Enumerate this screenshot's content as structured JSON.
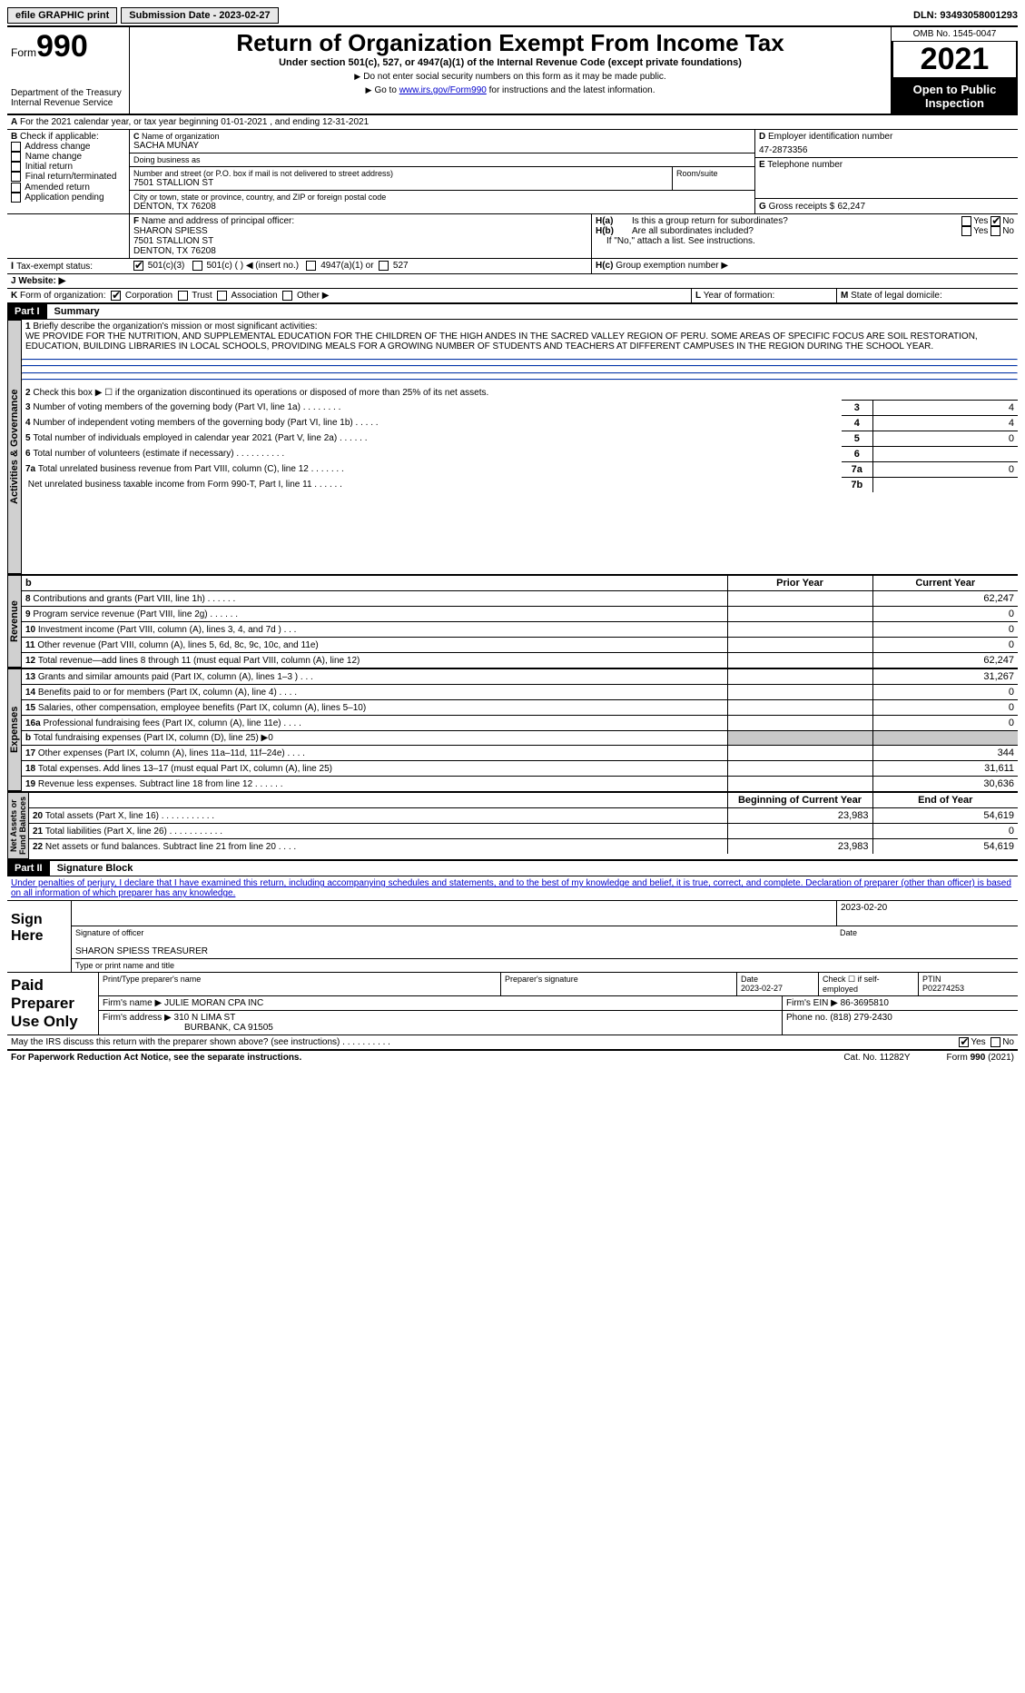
{
  "topbar": {
    "efile": "efile GRAPHIC print",
    "sub_label": "Submission Date - 2023-02-27",
    "dln_label": "DLN: 93493058001293"
  },
  "header": {
    "form_word": "Form",
    "form_num": "990",
    "dept": "Department of the Treasury\nInternal Revenue Service",
    "title": "Return of Organization Exempt From Income Tax",
    "subtitle": "Under section 501(c), 527, or 4947(a)(1) of the Internal Revenue Code (except private foundations)",
    "note1": "Do not enter social security numbers on this form as it may be made public.",
    "note2_pre": "Go to ",
    "note2_link": "www.irs.gov/Form990",
    "note2_post": " for instructions and the latest information.",
    "omb": "OMB No. 1545-0047",
    "year": "2021",
    "open_pub": "Open to Public\nInspection"
  },
  "sectionA": {
    "line": "For the 2021 calendar year, or tax year beginning 01-01-2021    , and ending 12-31-2021"
  },
  "sectionB": {
    "label": "Check if applicable:",
    "opts": [
      "Address change",
      "Name change",
      "Initial return",
      "Final return/terminated",
      "Amended return",
      "Application pending"
    ]
  },
  "sectionC": {
    "name_lbl": "Name of organization",
    "name": "SACHA MUNAY",
    "dba_lbl": "Doing business as",
    "dba": "",
    "street_lbl": "Number and street (or P.O. box if mail is not delivered to street address)",
    "room_lbl": "Room/suite",
    "street": "7501 STALLION ST",
    "city_lbl": "City or town, state or province, country, and ZIP or foreign postal code",
    "city": "DENTON, TX  76208"
  },
  "sectionD": {
    "lbl": "Employer identification number",
    "val": "47-2873356"
  },
  "sectionE": {
    "lbl": "Telephone number",
    "val": ""
  },
  "sectionG": {
    "lbl": "Gross receipts $",
    "val": "62,247"
  },
  "sectionF": {
    "lbl": "Name and address of principal officer:",
    "line1": "SHARON SPIESS",
    "line2": "7501 STALLION ST",
    "line3": "DENTON, TX  76208"
  },
  "sectionH": {
    "ha": "Is this a group return for subordinates?",
    "hb": "Are all subordinates included?",
    "ifno": "If \"No,\" attach a list. See instructions.",
    "hc": "Group exemption number ▶",
    "yes": "Yes",
    "no": "No"
  },
  "taxExempt": {
    "lbl": "Tax-exempt status:",
    "c3": "501(c)(3)",
    "c": "501(c) (  ) ◀ (insert no.)",
    "a1": "4947(a)(1) or",
    "s527": "527"
  },
  "website": {
    "lbl": "Website: ▶",
    "val": ""
  },
  "formOrg": {
    "lbl": "Form of organization:",
    "corp": "Corporation",
    "trust": "Trust",
    "assoc": "Association",
    "other": "Other ▶"
  },
  "yearForm": {
    "lbl": "Year of formation:",
    "val": ""
  },
  "stateDom": {
    "lbl": "State of legal domicile:",
    "val": ""
  },
  "part1": {
    "num": "Part I",
    "title": "Summary",
    "mission_lbl": "Briefly describe the organization's mission or most significant activities:",
    "mission": "WE PROVIDE FOR THE NUTRITION, AND SUPPLEMENTAL EDUCATION FOR THE CHILDREN OF THE HIGH ANDES IN THE SACRED VALLEY REGION OF PERU. SOME AREAS OF SPECIFIC FOCUS ARE SOIL RESTORATION, EDUCATION, BUILDING LIBRARIES IN LOCAL SCHOOLS, PROVIDING MEALS FOR A GROWING NUMBER OF STUDENTS AND TEACHERS AT DIFFERENT CAMPUSES IN THE REGION DURING THE SCHOOL YEAR.",
    "l2": "Check this box ▶ ☐  if the organization discontinued its operations or disposed of more than 25% of its net assets.",
    "lines_gov": [
      {
        "n": "3",
        "t": "Number of voting members of the governing body (Part VI, line 1a)   .   .   .   .   .   .   .   .",
        "b": "3",
        "v": "4"
      },
      {
        "n": "4",
        "t": "Number of independent voting members of the governing body (Part VI, line 1b)   .   .   .   .   .",
        "b": "4",
        "v": "4"
      },
      {
        "n": "5",
        "t": "Total number of individuals employed in calendar year 2021 (Part V, line 2a)   .   .   .   .   .   .",
        "b": "5",
        "v": "0"
      },
      {
        "n": "6",
        "t": "Total number of volunteers (estimate if necessary)   .   .   .   .   .   .   .   .   .   .",
        "b": "6",
        "v": ""
      },
      {
        "n": "7a",
        "t": "Total unrelated business revenue from Part VIII, column (C), line 12   .   .   .   .   .   .   .",
        "b": "7a",
        "v": "0"
      },
      {
        "n": "",
        "t": "Net unrelated business taxable income from Form 990-T, Part I, line 11   .   .   .   .   .   .",
        "b": "7b",
        "v": ""
      }
    ],
    "prior_hdr": "Prior Year",
    "curr_hdr": "Current Year",
    "rev_lines": [
      {
        "n": "8",
        "t": "Contributions and grants (Part VIII, line 1h)   .   .   .   .   .   .",
        "p": "",
        "c": "62,247"
      },
      {
        "n": "9",
        "t": "Program service revenue (Part VIII, line 2g)   .   .   .   .   .   .",
        "p": "",
        "c": "0"
      },
      {
        "n": "10",
        "t": "Investment income (Part VIII, column (A), lines 3, 4, and 7d )   .   .   .",
        "p": "",
        "c": "0"
      },
      {
        "n": "11",
        "t": "Other revenue (Part VIII, column (A), lines 5, 6d, 8c, 9c, 10c, and 11e)",
        "p": "",
        "c": "0"
      },
      {
        "n": "12",
        "t": "Total revenue—add lines 8 through 11 (must equal Part VIII, column (A), line 12)",
        "p": "",
        "c": "62,247"
      }
    ],
    "exp_lines": [
      {
        "n": "13",
        "t": "Grants and similar amounts paid (Part IX, column (A), lines 1–3 )   .   .   .",
        "p": "",
        "c": "31,267"
      },
      {
        "n": "14",
        "t": "Benefits paid to or for members (Part IX, column (A), line 4)   .   .   .   .",
        "p": "",
        "c": "0"
      },
      {
        "n": "15",
        "t": "Salaries, other compensation, employee benefits (Part IX, column (A), lines 5–10)",
        "p": "",
        "c": "0"
      },
      {
        "n": "16a",
        "t": "Professional fundraising fees (Part IX, column (A), line 11e)   .   .   .   .",
        "p": "",
        "c": "0"
      },
      {
        "n": "b",
        "t": "Total fundraising expenses (Part IX, column (D), line 25) ▶0",
        "p": "GREY",
        "c": "GREY"
      },
      {
        "n": "17",
        "t": "Other expenses (Part IX, column (A), lines 11a–11d, 11f–24e)   .   .   .   .",
        "p": "",
        "c": "344"
      },
      {
        "n": "18",
        "t": "Total expenses. Add lines 13–17 (must equal Part IX, column (A), line 25)",
        "p": "",
        "c": "31,611"
      },
      {
        "n": "19",
        "t": "Revenue less expenses. Subtract line 18 from line 12   .   .   .   .   .   .",
        "p": "",
        "c": "30,636"
      }
    ],
    "na_hdr1": "Beginning of Current Year",
    "na_hdr2": "End of Year",
    "na_lines": [
      {
        "n": "20",
        "t": "Total assets (Part X, line 16)   .   .   .   .   .   .   .   .   .   .   .",
        "p": "23,983",
        "c": "54,619"
      },
      {
        "n": "21",
        "t": "Total liabilities (Part X, line 26)   .   .   .   .   .   .   .   .   .   .   .",
        "p": "",
        "c": "0"
      },
      {
        "n": "22",
        "t": "Net assets or fund balances. Subtract line 21 from line 20   .   .   .   .",
        "p": "23,983",
        "c": "54,619"
      }
    ]
  },
  "part2": {
    "num": "Part II",
    "title": "Signature Block",
    "decl": "Under penalties of perjury, I declare that I have examined this return, including accompanying schedules and statements, and to the best of my knowledge and belief, it is true, correct, and complete. Declaration of preparer (other than officer) is based on all information of which preparer has any knowledge.",
    "sign_here": "Sign\nHere",
    "sig_officer": "Signature of officer",
    "date": "Date",
    "sig_date": "2023-02-20",
    "name_title": "SHARON SPIESS TREASURER",
    "type_print": "Type or print name and title",
    "paid": "Paid\nPreparer\nUse Only",
    "prep_name_lbl": "Print/Type preparer's name",
    "prep_sig_lbl": "Preparer's signature",
    "prep_date_lbl": "Date",
    "prep_date": "2023-02-27",
    "check_if": "Check ☐ if self-employed",
    "ptin_lbl": "PTIN",
    "ptin": "P02274253",
    "firm_name_lbl": "Firm's name   ▶",
    "firm_name": "JULIE MORAN CPA INC",
    "firm_ein_lbl": "Firm's EIN ▶",
    "firm_ein": "86-3695810",
    "firm_addr_lbl": "Firm's address ▶",
    "firm_addr1": "310 N LIMA ST",
    "firm_addr2": "BURBANK, CA  91505",
    "phone_lbl": "Phone no.",
    "phone": "(818) 279-2430",
    "discuss": "May the IRS discuss this return with the preparer shown above? (see instructions)   .   .   .   .   .   .   .   .   .   .",
    "yes": "Yes",
    "no": "No"
  },
  "footer": {
    "pra": "For Paperwork Reduction Act Notice, see the separate instructions.",
    "cat": "Cat. No. 11282Y",
    "form": "Form 990 (2021)"
  },
  "labels": {
    "B": "B",
    "C": "C",
    "D": "D",
    "E": "E",
    "F": "F",
    "G": "G",
    "I": "I",
    "J": "J",
    "K": "K",
    "L": "L",
    "M": "M",
    "Ha": "H(a)",
    "Hb": "H(b)",
    "Hc": "H(c)",
    "A": "A"
  }
}
